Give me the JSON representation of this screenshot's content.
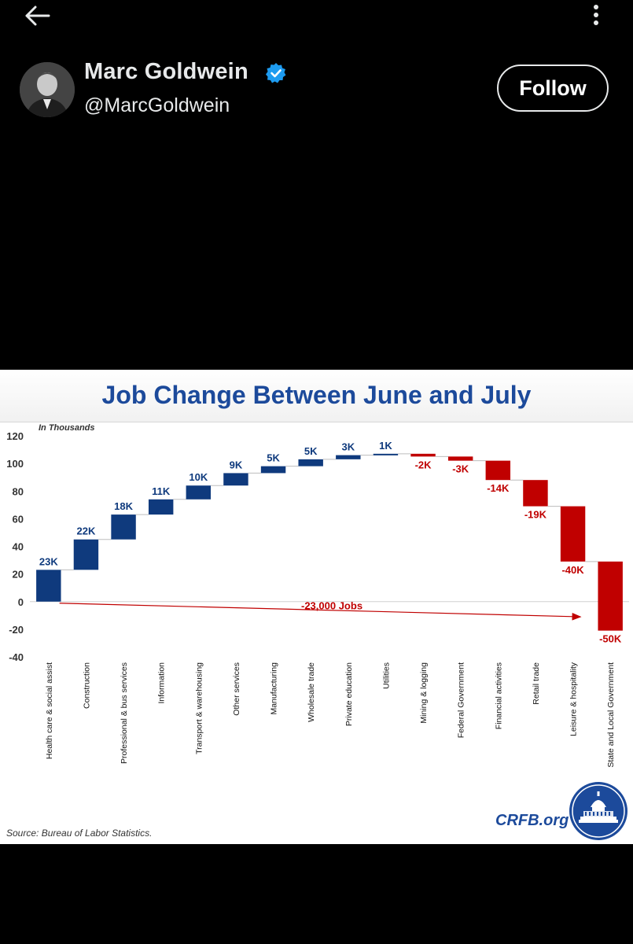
{
  "header": {
    "back_icon": "arrow-left-icon",
    "more_icon": "vertical-dots-icon"
  },
  "author": {
    "name": "Marc Goldwein",
    "handle": "@MarcGoldwein",
    "verified": true,
    "verified_color": "#1d9bf0"
  },
  "follow": {
    "label": "Follow"
  },
  "chart_data": {
    "type": "bar",
    "subtype": "waterfall",
    "title": "Job Change Between June and July",
    "unit_note": "In Thousands",
    "ylim": [
      -40,
      120
    ],
    "yticks": [
      120,
      100,
      80,
      60,
      40,
      20,
      0,
      -20,
      -40
    ],
    "grid": false,
    "colors": {
      "positive": "#0f3a7d",
      "negative": "#c00000"
    },
    "categories": [
      "Health care & social assist",
      "Construction",
      "Professional & bus services",
      "Information",
      "Transport & warehousing",
      "Other services",
      "Manufacturing",
      "Wholesale trade",
      "Private education",
      "Utilities",
      "Mining & logging",
      "Federal Government",
      "Financial activities",
      "Retail trade",
      "Leisure & hospitality",
      "State and Local Government"
    ],
    "values": [
      23,
      22,
      18,
      11,
      10,
      9,
      5,
      5,
      3,
      1,
      -2,
      -3,
      -14,
      -19,
      -40,
      -50
    ],
    "labels": [
      "23K",
      "22K",
      "18K",
      "11K",
      "10K",
      "9K",
      "5K",
      "5K",
      "3K",
      "1K",
      "-2K",
      "-3K",
      "-14K",
      "-19K",
      "-40K",
      "-50K"
    ],
    "annotation": "-23,000 Jobs",
    "source": "Source: Bureau of Labor Statistics.",
    "brand": "CRFB.org"
  }
}
